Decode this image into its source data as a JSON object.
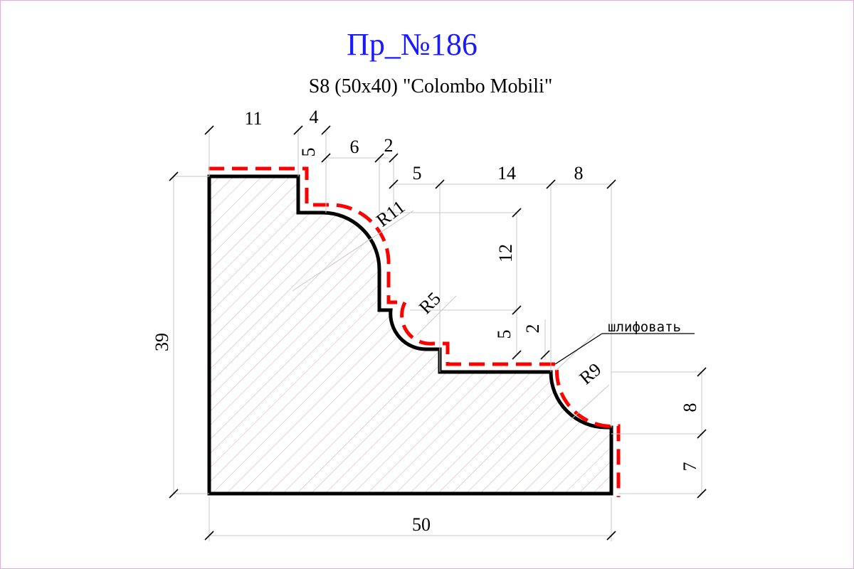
{
  "title": "Пр_№186",
  "subtitle": "S8 (50x40) \"Colombo Mobili\"",
  "colors": {
    "title": "#1a1aff",
    "profile_outline": "#000000",
    "sanding_line": "#ff0000",
    "hatch": "#d8a8a8",
    "extension_line": "#c8c8c8",
    "frame": "#e8a8e0"
  },
  "dimensions": {
    "top_11": "11",
    "top_4": "4",
    "vert_5_top": "5",
    "top_6": "6",
    "top_2": "2",
    "top_5": "5",
    "top_14": "14",
    "top_8": "8",
    "height_39": "39",
    "width_50": "50",
    "vert_12": "12",
    "vert_5_mid": "5",
    "vert_2_mid": "2",
    "right_8": "8",
    "right_7": "7"
  },
  "radii": {
    "r11": "R11",
    "r5": "R5",
    "r9": "R9"
  },
  "callout": {
    "label": "шлифовать"
  }
}
